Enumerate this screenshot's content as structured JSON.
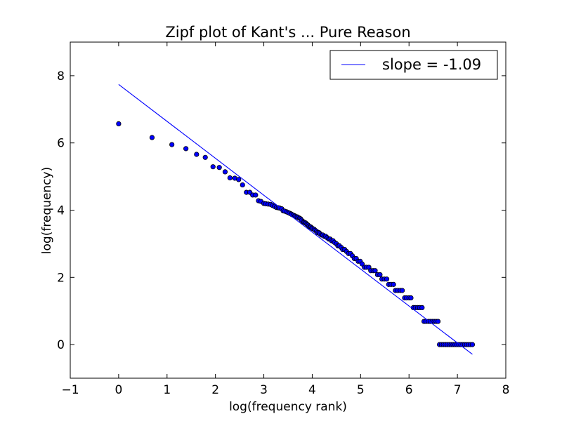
{
  "chart_data": {
    "type": "scatter",
    "title": "Zipf plot of Kant's ... Pure Reason",
    "xlabel": "log(frequency rank)",
    "ylabel": "log(frequency)",
    "xlim": [
      -1,
      8
    ],
    "ylim": [
      -1,
      9
    ],
    "xticks": [
      -1,
      0,
      1,
      2,
      3,
      4,
      5,
      6,
      7,
      8
    ],
    "yticks": [
      0,
      2,
      4,
      6,
      8
    ],
    "xtick_labels": [
      "−1",
      "0",
      "1",
      "2",
      "3",
      "4",
      "5",
      "6",
      "7",
      "8"
    ],
    "ytick_labels": [
      "0",
      "2",
      "4",
      "6",
      "8"
    ],
    "grid": false,
    "legend_position": "top-right",
    "series": [
      {
        "kind": "points",
        "color": "#0000ff",
        "points": [
          [
            0.0,
            6.57
          ],
          [
            0.69,
            6.16
          ],
          [
            1.1,
            5.95
          ],
          [
            1.39,
            5.83
          ],
          [
            1.61,
            5.66
          ],
          [
            1.79,
            5.57
          ],
          [
            1.95,
            5.29
          ],
          [
            2.08,
            5.27
          ],
          [
            2.2,
            5.14
          ],
          [
            2.3,
            4.96
          ],
          [
            2.4,
            4.95
          ],
          [
            2.48,
            4.91
          ],
          [
            2.56,
            4.75
          ],
          [
            2.64,
            4.53
          ],
          [
            2.71,
            4.53
          ],
          [
            2.77,
            4.45
          ],
          [
            2.83,
            4.45
          ],
          [
            2.89,
            4.28
          ],
          [
            2.94,
            4.26
          ],
          [
            3.0,
            4.2
          ],
          [
            3.04,
            4.19
          ],
          [
            3.09,
            4.18
          ],
          [
            3.14,
            4.17
          ],
          [
            3.18,
            4.14
          ],
          [
            3.22,
            4.11
          ],
          [
            3.26,
            4.08
          ],
          [
            3.3,
            4.07
          ],
          [
            3.33,
            4.06
          ],
          [
            3.37,
            4.04
          ],
          [
            3.4,
            3.98
          ],
          [
            3.43,
            3.97
          ],
          [
            3.47,
            3.95
          ],
          [
            3.5,
            3.93
          ],
          [
            3.53,
            3.91
          ],
          [
            3.56,
            3.89
          ],
          [
            3.58,
            3.87
          ],
          [
            3.61,
            3.85
          ],
          [
            3.64,
            3.83
          ],
          [
            3.66,
            3.81
          ],
          [
            3.69,
            3.8
          ],
          [
            3.71,
            3.78
          ],
          [
            3.74,
            3.76
          ],
          [
            3.76,
            3.74
          ],
          [
            3.78,
            3.7
          ],
          [
            3.81,
            3.66
          ],
          [
            3.83,
            3.64
          ],
          [
            3.85,
            3.63
          ],
          [
            3.87,
            3.61
          ],
          [
            3.89,
            3.58
          ],
          [
            3.91,
            3.56
          ],
          [
            3.93,
            3.53
          ],
          [
            3.95,
            3.5
          ],
          [
            3.97,
            3.5
          ],
          [
            3.99,
            3.47
          ],
          [
            4.01,
            3.45
          ],
          [
            4.04,
            3.43
          ],
          [
            4.06,
            3.4
          ],
          [
            4.09,
            3.37
          ],
          [
            4.11,
            3.33
          ],
          [
            4.14,
            3.33
          ],
          [
            4.16,
            3.3
          ],
          [
            4.19,
            3.26
          ],
          [
            4.22,
            3.26
          ],
          [
            4.25,
            3.22
          ],
          [
            4.28,
            3.22
          ],
          [
            4.31,
            3.18
          ],
          [
            4.34,
            3.14
          ],
          [
            4.37,
            3.14
          ],
          [
            4.4,
            3.09
          ],
          [
            4.43,
            3.09
          ],
          [
            4.46,
            3.04
          ],
          [
            4.5,
            3.0
          ],
          [
            4.53,
            2.94
          ],
          [
            4.56,
            2.94
          ],
          [
            4.6,
            2.89
          ],
          [
            4.63,
            2.83
          ],
          [
            4.67,
            2.83
          ],
          [
            4.71,
            2.77
          ],
          [
            4.75,
            2.71
          ],
          [
            4.79,
            2.71
          ],
          [
            4.83,
            2.64
          ],
          [
            4.87,
            2.56
          ],
          [
            4.91,
            2.56
          ],
          [
            4.95,
            2.48
          ],
          [
            4.99,
            2.48
          ],
          [
            5.03,
            2.4
          ],
          [
            5.08,
            2.3
          ],
          [
            5.12,
            2.3
          ],
          [
            5.17,
            2.3
          ],
          [
            5.21,
            2.2
          ],
          [
            5.26,
            2.2
          ],
          [
            5.3,
            2.2
          ],
          [
            5.35,
            2.08
          ],
          [
            5.4,
            2.08
          ],
          [
            5.44,
            1.95
          ],
          [
            5.49,
            1.95
          ],
          [
            5.54,
            1.95
          ],
          [
            5.58,
            1.79
          ],
          [
            5.63,
            1.79
          ],
          [
            5.68,
            1.79
          ],
          [
            5.72,
            1.61
          ],
          [
            5.77,
            1.61
          ],
          [
            5.82,
            1.61
          ],
          [
            5.86,
            1.61
          ],
          [
            5.91,
            1.39
          ],
          [
            5.95,
            1.39
          ],
          [
            6.0,
            1.39
          ],
          [
            6.04,
            1.39
          ],
          [
            6.09,
            1.1
          ],
          [
            6.13,
            1.1
          ],
          [
            6.18,
            1.1
          ],
          [
            6.22,
            1.1
          ],
          [
            6.27,
            1.1
          ],
          [
            6.31,
            0.69
          ],
          [
            6.35,
            0.69
          ],
          [
            6.4,
            0.69
          ],
          [
            6.44,
            0.69
          ],
          [
            6.48,
            0.69
          ],
          [
            6.52,
            0.69
          ],
          [
            6.56,
            0.69
          ],
          [
            6.6,
            0.69
          ],
          [
            6.63,
            0.0
          ],
          [
            6.67,
            0.0
          ],
          [
            6.71,
            0.0
          ],
          [
            6.75,
            0.0
          ],
          [
            6.79,
            0.0
          ],
          [
            6.83,
            0.0
          ],
          [
            6.87,
            0.0
          ],
          [
            6.91,
            0.0
          ],
          [
            6.95,
            0.0
          ],
          [
            6.99,
            0.0
          ],
          [
            7.03,
            0.0
          ],
          [
            7.07,
            0.0
          ],
          [
            7.11,
            0.0
          ],
          [
            7.15,
            0.0
          ],
          [
            7.19,
            0.0
          ],
          [
            7.23,
            0.0
          ],
          [
            7.27,
            0.0
          ],
          [
            7.31,
            0.0
          ]
        ]
      },
      {
        "kind": "fit-line",
        "name": "slope = -1.09",
        "color": "#0000ff",
        "x": [
          0.0,
          7.31
        ],
        "y": [
          7.74,
          -0.29
        ]
      }
    ]
  }
}
